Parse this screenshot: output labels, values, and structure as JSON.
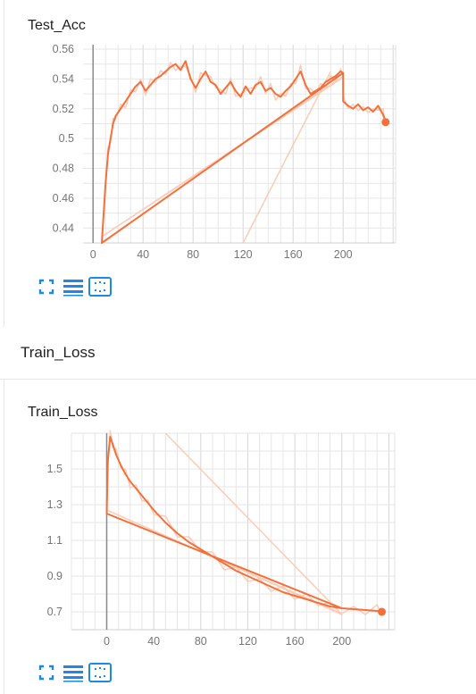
{
  "section": {
    "title": "Train_Loss"
  },
  "icons": {
    "fullscreen": "fullscreen-icon",
    "data_table": "toggle-log-scale-icon",
    "fit_domain": "fit-domain-icon"
  },
  "colors": {
    "line": "#f4703b",
    "line_faded": "#fbcbb6",
    "grid": "#e0e0e0",
    "axis": "#9e9e9e"
  },
  "chart_data": [
    {
      "type": "line",
      "title": "Test_Acc",
      "xlabel": "",
      "ylabel": "",
      "xlim": [
        -8,
        242
      ],
      "ylim": [
        0.43,
        0.563
      ],
      "x_ticks": [
        "0",
        "40",
        "80",
        "120",
        "160",
        "200"
      ],
      "x_tick_values": [
        0,
        40,
        80,
        120,
        160,
        200
      ],
      "y_ticks": [
        "0.44",
        "0.46",
        "0.48",
        "0.5",
        "0.52",
        "0.54",
        "0.56"
      ],
      "y_tick_values": [
        0.44,
        0.46,
        0.48,
        0.5,
        0.52,
        0.54,
        0.56
      ],
      "grid": true,
      "series": [
        {
          "values_x": [
            7,
            10,
            12,
            14,
            16,
            18,
            22,
            26,
            30,
            34,
            38,
            42,
            46,
            50,
            54,
            58,
            62,
            66,
            70,
            74,
            78,
            82,
            86,
            90,
            94,
            98,
            102,
            106,
            110,
            114,
            118,
            122,
            126,
            130,
            134,
            138,
            142,
            146,
            150,
            154,
            158,
            162,
            166,
            170,
            174,
            178,
            182,
            186,
            190,
            194,
            198,
            200,
            7,
            200,
            200,
            204,
            208,
            212,
            216,
            220,
            224,
            228,
            232,
            234
          ],
          "values_y": [
            0.43,
            0.47,
            0.49,
            0.5,
            0.51,
            0.515,
            0.52,
            0.525,
            0.53,
            0.535,
            0.538,
            0.532,
            0.536,
            0.54,
            0.542,
            0.545,
            0.548,
            0.55,
            0.546,
            0.552,
            0.54,
            0.534,
            0.54,
            0.545,
            0.538,
            0.536,
            0.53,
            0.534,
            0.538,
            0.532,
            0.528,
            0.535,
            0.53,
            0.536,
            0.538,
            0.532,
            0.534,
            0.53,
            0.528,
            0.532,
            0.535,
            0.54,
            0.545,
            0.536,
            0.53,
            0.532,
            0.534,
            0.538,
            0.54,
            0.542,
            0.545,
            0.544,
            0.43,
            0.544,
            0.525,
            0.522,
            0.52,
            0.523,
            0.519,
            0.521,
            0.518,
            0.522,
            0.516,
            0.511
          ]
        }
      ]
    },
    {
      "type": "line",
      "title": "Train_Loss",
      "xlabel": "",
      "ylabel": "",
      "xlim": [
        -30,
        245
      ],
      "ylim": [
        0.6,
        1.7
      ],
      "x_ticks": [
        "0",
        "40",
        "80",
        "120",
        "160",
        "200"
      ],
      "x_tick_values": [
        0,
        40,
        80,
        120,
        160,
        200
      ],
      "y_ticks": [
        "0.7",
        "0.9",
        "1.1",
        "1.3",
        "1.5"
      ],
      "y_tick_values": [
        0.7,
        0.9,
        1.1,
        1.3,
        1.5
      ],
      "grid": true,
      "series": [
        {
          "values_x": [
            0,
            1,
            3,
            5,
            8,
            12,
            16,
            20,
            25,
            30,
            35,
            40,
            50,
            60,
            70,
            80,
            90,
            100,
            110,
            120,
            130,
            140,
            150,
            160,
            170,
            180,
            190,
            200,
            0,
            200,
            210,
            220,
            230,
            234
          ],
          "values_y": [
            1.25,
            1.55,
            1.68,
            1.64,
            1.58,
            1.52,
            1.47,
            1.43,
            1.39,
            1.35,
            1.31,
            1.27,
            1.2,
            1.14,
            1.09,
            1.05,
            1.01,
            0.97,
            0.93,
            0.9,
            0.87,
            0.84,
            0.81,
            0.79,
            0.77,
            0.75,
            0.73,
            0.72,
            1.25,
            0.72,
            0.715,
            0.71,
            0.705,
            0.7
          ]
        }
      ]
    }
  ]
}
